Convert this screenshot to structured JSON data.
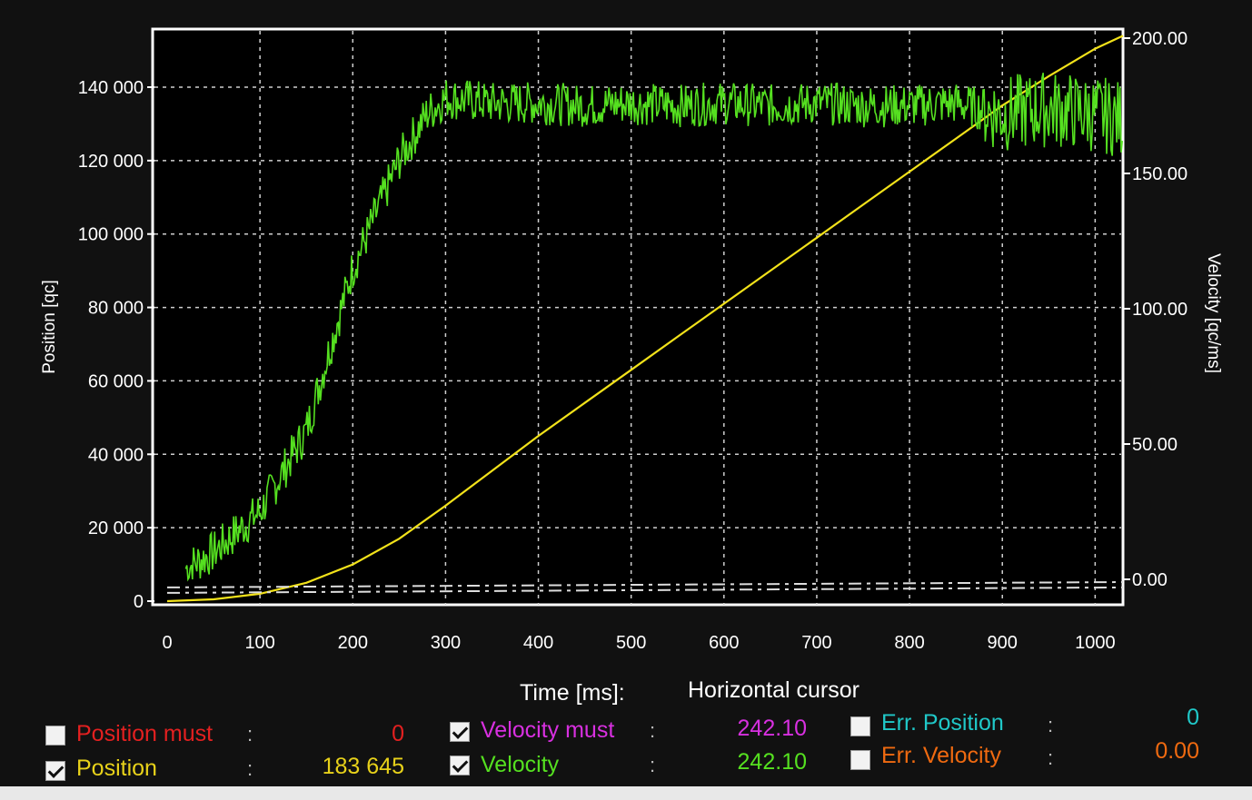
{
  "chart_data": {
    "type": "line",
    "xlabel": "Time [ms]:",
    "ylabel": "Position [qc]",
    "y2label": "Velocity [qc/ms]",
    "xlim": [
      0,
      1030
    ],
    "ylim": [
      0,
      150000
    ],
    "y2lim": [
      0,
      200
    ],
    "x_ticks": [
      "0",
      "100",
      "200",
      "300",
      "400",
      "500",
      "600",
      "700",
      "800",
      "900",
      "1000"
    ],
    "y_ticks": [
      "0",
      "20 000",
      "40 000",
      "60 000",
      "80 000",
      "100 000",
      "120 000",
      "140 000"
    ],
    "y2_ticks": [
      "0.00",
      "50.00",
      "100.00",
      "150.00",
      "200.00"
    ],
    "grid": true,
    "series": [
      {
        "name": "Position",
        "axis": "left",
        "color": "#f2e21a",
        "x": [
          0,
          50,
          100,
          150,
          200,
          250,
          300,
          350,
          400,
          450,
          500,
          550,
          600,
          650,
          700,
          750,
          800,
          850,
          900,
          950,
          1000,
          1030
        ],
        "values": [
          0,
          500,
          2000,
          5000,
          10000,
          17000,
          26000,
          35500,
          45000,
          54000,
          63000,
          72000,
          81000,
          90000,
          99000,
          108000,
          117000,
          126000,
          135000,
          143000,
          150500,
          154000
        ]
      },
      {
        "name": "Velocity",
        "axis": "right",
        "color": "#55e020",
        "x": [
          0,
          50,
          100,
          150,
          200,
          250,
          280,
          300,
          350,
          400,
          450,
          500,
          550,
          600,
          650,
          700,
          750,
          800,
          850,
          900,
          950,
          1000,
          1030
        ],
        "values": [
          0,
          10,
          25,
          55,
          115,
          155,
          172,
          178,
          176,
          176,
          175,
          176,
          175,
          176,
          175,
          176,
          175,
          175,
          176,
          172,
          174,
          172,
          170
        ],
        "noise": 8
      },
      {
        "name": "Velocity must",
        "axis": "right",
        "color": "#dddddd",
        "dashed": true,
        "x": [
          0,
          1030
        ],
        "values": [
          -3,
          -1
        ]
      },
      {
        "name": "Err. Position",
        "axis": "right",
        "color": "#dddddd",
        "dashed": true,
        "x": [
          0,
          1030
        ],
        "values": [
          -5,
          -3
        ]
      }
    ]
  },
  "footer": {
    "time_label": "Time [ms]:",
    "cursor_label": "Horizontal cursor",
    "items": [
      {
        "label": "Position must",
        "value": "0",
        "checked": false,
        "color": "#e32020",
        "value_color": "#e32020"
      },
      {
        "label": "Position",
        "value": "183 645",
        "checked": true,
        "color": "#e8d21a",
        "value_color": "#e8d21a"
      },
      {
        "label": "Velocity must",
        "value": "242.10",
        "checked": true,
        "color": "#d830e0",
        "value_color": "#d830e0"
      },
      {
        "label": "Velocity",
        "value": "242.10",
        "checked": true,
        "color": "#55e020",
        "value_color": "#55e020"
      },
      {
        "label": "Err. Position",
        "value": "0",
        "checked": false,
        "color": "#20c8c8",
        "value_color": "#20c8c8"
      },
      {
        "label": "Err. Velocity",
        "value": "0.00",
        "checked": false,
        "color": "#f06a10",
        "value_color": "#f06a10"
      }
    ]
  }
}
